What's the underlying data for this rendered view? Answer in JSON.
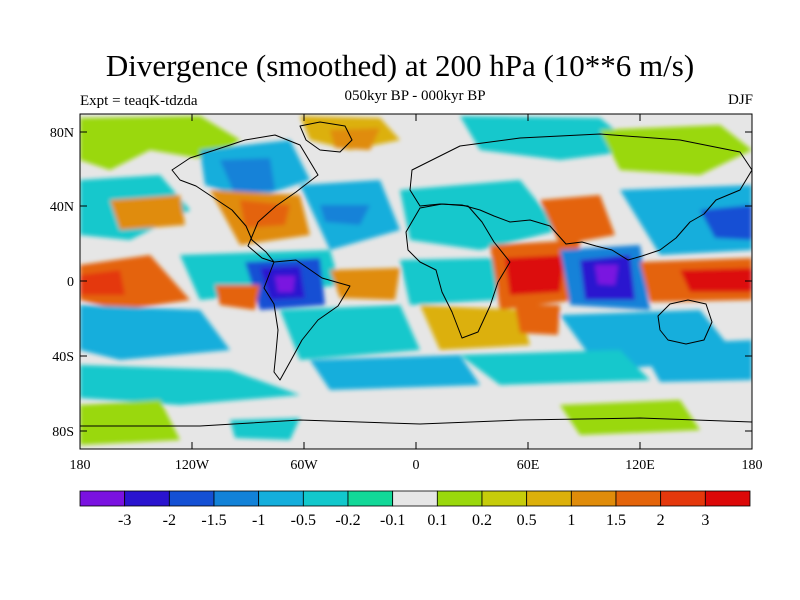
{
  "title": "Divergence (smoothed) at 200 hPa (10**6 m/s)",
  "subtitle": "050kyr BP - 000kyr BP",
  "experiment": "Expt = teaqK-tdzda",
  "season": "DJF",
  "lat_ticks": [
    "80N",
    "40N",
    "0",
    "40S",
    "80S"
  ],
  "lon_ticks": [
    "180",
    "120W",
    "60W",
    "0",
    "60E",
    "120E",
    "180"
  ],
  "colorbar": {
    "colors": [
      "#7a12e0",
      "#2a14cf",
      "#1450d4",
      "#1282d8",
      "#14aedc",
      "#12c8cc",
      "#12d898",
      "#e6e6e6",
      "#9ad80c",
      "#c6cc0a",
      "#dcb00a",
      "#e08c0a",
      "#e4640a",
      "#e4380c",
      "#dc0808"
    ],
    "labels": [
      "-3",
      "-2",
      "-1.5",
      "-1",
      "-0.5",
      "-0.2",
      "-0.1",
      "0.1",
      "0.2",
      "0.5",
      "1",
      "1.5",
      "2",
      "3"
    ]
  }
}
